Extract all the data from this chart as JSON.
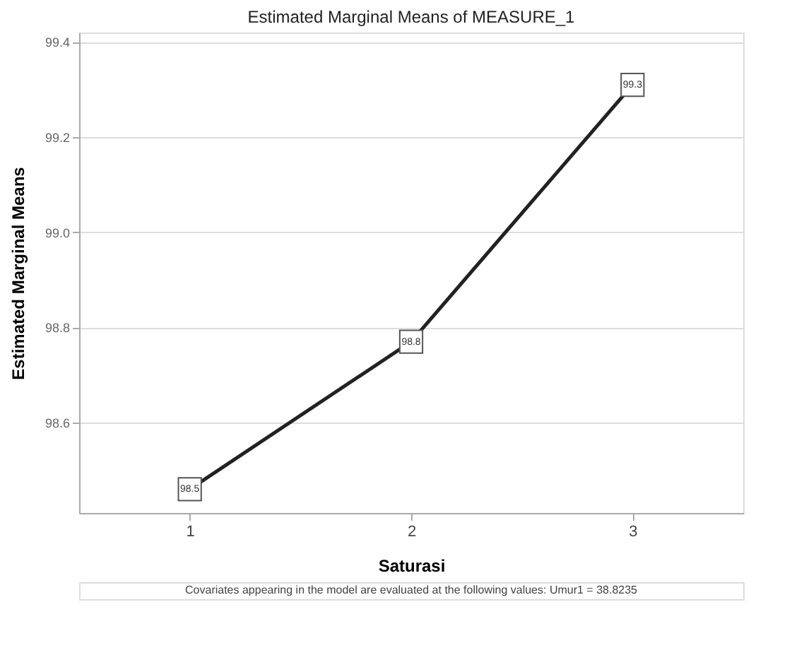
{
  "chart_data": {
    "type": "line",
    "title": "Estimated Marginal Means of MEASURE_1",
    "xlabel": "Saturasi",
    "ylabel": "Estimated Marginal Means",
    "categories": [
      "1",
      "2",
      "3"
    ],
    "series": [
      {
        "color": "#222222",
        "values": [
          98.46,
          98.77,
          99.31
        ],
        "value_labels": [
          "98.5",
          "98.8",
          "99.3"
        ]
      }
    ],
    "ylim": [
      98.41,
      99.42
    ],
    "yticks": [
      {
        "value": 98.6,
        "label": "98.6"
      },
      {
        "value": 98.8,
        "label": "98.8"
      },
      {
        "value": 99.0,
        "label": "99.0"
      },
      {
        "value": 99.2,
        "label": "99.2"
      },
      {
        "value": 99.4,
        "label": "99.4"
      }
    ],
    "grid": "y",
    "marker": "square",
    "line_style": "solid",
    "annotations": [
      "Covariates appearing in the model are evaluated at the following values: Umur1 = 38.8235"
    ]
  }
}
